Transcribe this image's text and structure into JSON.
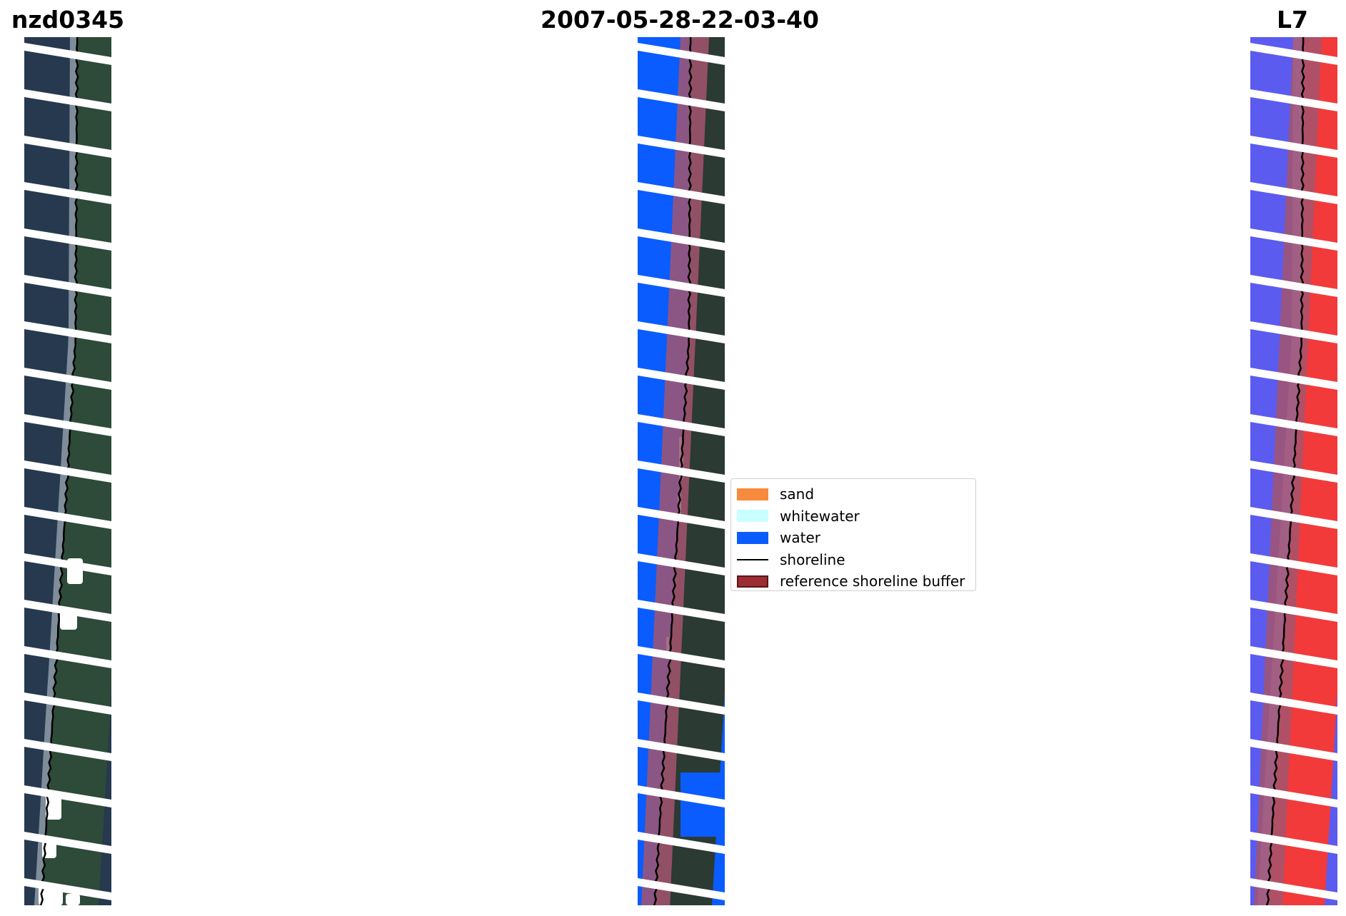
{
  "titles": {
    "site": "nzd0345",
    "date": "2007-05-28-22-03-40",
    "satellite": "L7"
  },
  "legend": {
    "items": [
      {
        "label": "sand",
        "color": "#f78a3c",
        "kind": "patch"
      },
      {
        "label": "whitewater",
        "color": "#c9ffff",
        "kind": "patch"
      },
      {
        "label": "water",
        "color": "#0a5cff",
        "kind": "patch"
      },
      {
        "label": "shoreline",
        "color": "#000000",
        "kind": "line"
      },
      {
        "label": "reference shoreline buffer",
        "color": "#9b2d33",
        "kind": "patch-edged"
      }
    ]
  },
  "colors": {
    "rgb_ocean": "#26394f",
    "rgb_land": "#2e4a39",
    "class_water": "#0a5cff",
    "class_land": "#2b3a33",
    "buffer": "#a3556e",
    "mndwi_water": "#5b5bf0",
    "mndwi_land": "#f23a3a",
    "shoreline": "#000000",
    "nodata_stripe": "#ffffff"
  }
}
